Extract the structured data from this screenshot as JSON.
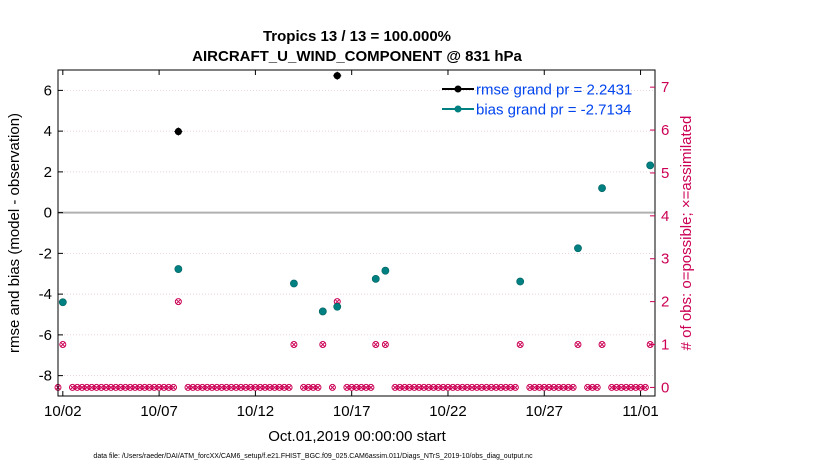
{
  "chart_data": {
    "type": "scatter",
    "title": "Tropics 13 / 13 = 100.000%",
    "subtitle": "AIRCRAFT_U_WIND_COMPONENT @ 831 hPa",
    "xlabel": "Oct.01,2019 00:00:00 start",
    "ylabel": "rmse and bias (model - observation)",
    "ylabel_right": "# of obs: o=possible; ×=assimilated",
    "footnote": "data file: /Users/raeder/DAI/ATM_forcXX/CAM6_setup/f.e21.FHIST_BGC.f09_025.CAM6assim.011/Diags_NTrS_2019-10/obs_diag_output.nc",
    "xlim": [
      1.75,
      32.75
    ],
    "ylim": [
      -9,
      7
    ],
    "ylim_right": [
      -0.2,
      7.4
    ],
    "x_ticks": [
      {
        "x": 2,
        "label": "10/02"
      },
      {
        "x": 7,
        "label": "10/07"
      },
      {
        "x": 12,
        "label": "10/12"
      },
      {
        "x": 17,
        "label": "10/17"
      },
      {
        "x": 22,
        "label": "10/22"
      },
      {
        "x": 27,
        "label": "10/27"
      },
      {
        "x": 32,
        "label": "11/01"
      }
    ],
    "y_ticks": [
      -8,
      -6,
      -4,
      -2,
      0,
      2,
      4,
      6
    ],
    "y_ticks_right": [
      0,
      1,
      2,
      3,
      4,
      5,
      6,
      7
    ],
    "zero_line": 0,
    "grid": "horizontal dotted",
    "legend": {
      "placement": "top-right",
      "entries": [
        "rmse grand pr = 2.2431",
        "bias grand pr = -2.7134"
      ]
    },
    "colors": {
      "rmse": "#000000",
      "bias": "#008080",
      "obs": "#cc0055",
      "zero": "#b0b0b0"
    },
    "series": [
      {
        "name": "rmse grand pr = 2.2431",
        "role": "rmse",
        "points": [
          [
            8.0,
            3.98
          ],
          [
            16.25,
            6.72
          ]
        ]
      },
      {
        "name": "bias grand pr = -2.7134",
        "role": "bias",
        "points": [
          [
            2.0,
            -4.4
          ],
          [
            8.0,
            -2.77
          ],
          [
            14.0,
            -3.48
          ],
          [
            15.5,
            -4.85
          ],
          [
            16.25,
            -4.62
          ],
          [
            18.25,
            -3.25
          ],
          [
            18.75,
            -2.85
          ],
          [
            25.75,
            -3.38
          ],
          [
            28.75,
            -1.75
          ],
          [
            30.0,
            1.2
          ],
          [
            32.5,
            2.32
          ]
        ]
      },
      {
        "role": "obs_possible",
        "x_start": 1.75,
        "x_step": 0.25,
        "count": 125,
        "nonzero": [
          [
            2.0,
            1
          ],
          [
            8.0,
            2
          ],
          [
            14.0,
            1
          ],
          [
            15.5,
            1
          ],
          [
            16.25,
            2
          ],
          [
            18.25,
            1
          ],
          [
            18.75,
            1
          ],
          [
            25.75,
            1
          ],
          [
            28.75,
            1
          ],
          [
            30.0,
            1
          ],
          [
            32.5,
            1
          ]
        ],
        "gaps": [
          2.25,
          8.25,
          14.25,
          15.75,
          16.5,
          18.5,
          19.0,
          26.0,
          29.0,
          30.25,
          32.75
        ]
      }
    ]
  }
}
